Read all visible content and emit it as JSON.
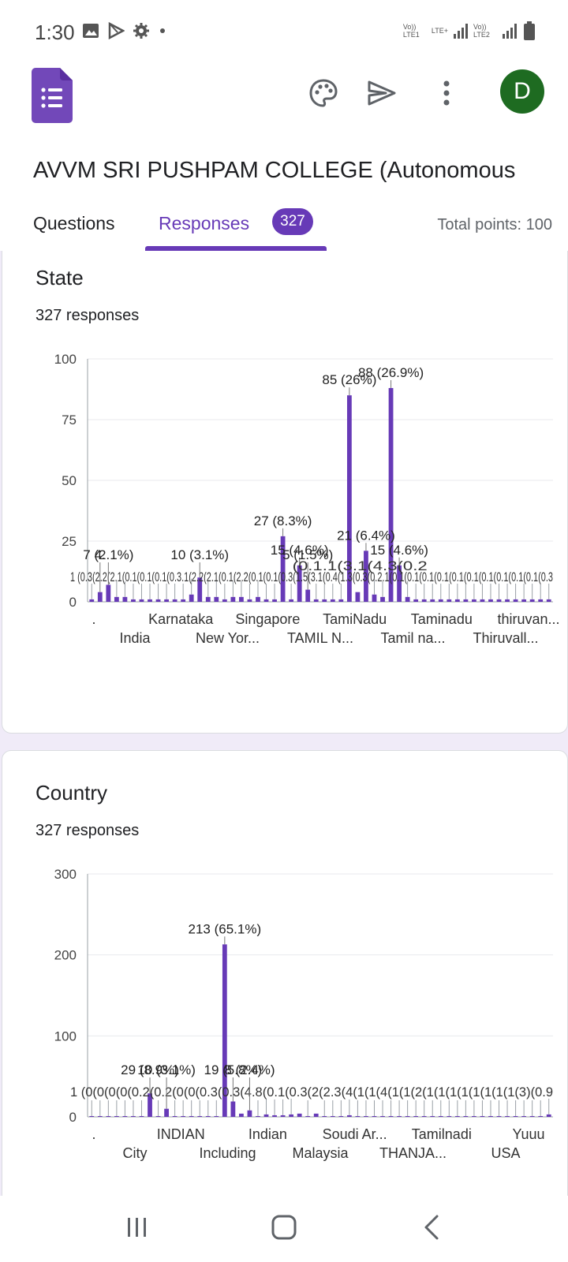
{
  "status_bar": {
    "time": "1:30",
    "left_icons": [
      "image-icon",
      "play-store-icon",
      "settings-icon",
      "dot-icon"
    ],
    "network_1": "Vo)) LTE1",
    "network_lte": "LTE+",
    "network_2": "Vo)) LTE2"
  },
  "app_bar": {
    "avatar_letter": "D",
    "icons": [
      "palette-icon",
      "send-icon",
      "more-vert-icon"
    ]
  },
  "form": {
    "title": "AVVM SRI PUSHPAM COLLEGE (Autonomous"
  },
  "tabs": {
    "questions_label": "Questions",
    "responses_label": "Responses",
    "responses_count": "327",
    "total_points": "Total points: 100"
  },
  "colors": {
    "accent": "#673ab7",
    "avatar": "#1e6b21",
    "background": "#f0ebf8"
  },
  "state_card": {
    "title": "State",
    "subtitle": "327 responses"
  },
  "country_card": {
    "title": "Country",
    "subtitle": "327 responses"
  },
  "chart_data": [
    {
      "type": "bar",
      "title": "State",
      "ylim": [
        0,
        100
      ],
      "yticks": [
        "0",
        "25",
        "50",
        "75",
        "100"
      ],
      "tick_labels_row1": [
        ".",
        "Karnataka",
        "Singapore",
        "TamiNadu",
        "Taminadu",
        "thiruvan..."
      ],
      "tick_labels_row2": [
        "India",
        "New Yor...",
        "TAMIL N...",
        "Tamil na...",
        "Thiruvall..."
      ],
      "values": [
        1,
        4,
        7,
        2,
        2,
        1,
        1,
        1,
        1,
        1,
        1,
        1,
        3,
        10,
        2,
        2,
        1,
        2,
        2,
        1,
        2,
        1,
        1,
        27,
        1,
        15,
        5,
        1,
        1,
        1,
        1,
        85,
        4,
        21,
        3,
        2,
        88,
        15,
        2,
        1,
        1,
        1,
        1,
        1,
        1,
        1,
        1,
        1,
        1,
        1,
        1,
        1,
        1,
        1,
        1,
        1
      ],
      "data_labels": [
        {
          "index": 1,
          "text": "4."
        },
        {
          "index": 2,
          "text": "7 (2.1%)"
        },
        {
          "index": 13,
          "text": "10 (3.1%)"
        },
        {
          "index": 23,
          "text": "27 (8.3%)"
        },
        {
          "index": 25,
          "text": "15 (4.6%)"
        },
        {
          "index": 26,
          "text": "5 (1.5%)"
        },
        {
          "index": 31,
          "text": "85 (26%)"
        },
        {
          "index": 33,
          "text": "21 (6.4%)"
        },
        {
          "index": 36,
          "text": "88 (26.9%)"
        },
        {
          "index": 37,
          "text": "15 (4.6%)"
        }
      ],
      "clutter_row": "1 (0.3(2.2(2.1(0.1(0.1(0.1(0.3.1(2.2(2.1(0.1(2.2(0.1(0.1(0.3(1.5(3.1(0.4(1.3(0.3(0.2.1(0.1(0.1(0.1(0.1(0.1(0.1(0.1(0.1(0.1(0.1(0.3",
      "clutter_row_secondary": "(0.1.1(3.1(4.3(0.2"
    },
    {
      "type": "bar",
      "title": "Country",
      "ylim": [
        0,
        300
      ],
      "yticks": [
        "0",
        "100",
        "200",
        "300"
      ],
      "tick_labels_row1": [
        ".",
        "INDIAN",
        "Indian",
        "Soudi Ar...",
        "Tamilnadi",
        "Yuuu"
      ],
      "tick_labels_row2": [
        "City",
        "Including",
        "Malaysia",
        "THANJA...",
        "USA"
      ],
      "values": [
        1,
        1,
        1,
        1,
        1,
        1,
        1,
        29,
        1,
        10,
        1,
        1,
        1,
        1,
        1,
        1,
        213,
        19,
        4,
        8,
        1,
        3,
        2,
        2,
        3,
        4,
        1,
        4,
        1,
        1,
        1,
        2,
        1,
        1,
        1,
        1,
        1,
        1,
        1,
        1,
        1,
        1,
        1,
        1,
        1,
        1,
        1,
        1,
        1,
        1,
        1,
        1,
        1,
        1,
        1,
        3
      ],
      "data_labels": [
        {
          "index": 7,
          "text": "29 (8.9%)"
        },
        {
          "index": 9,
          "text": "10 (3.1%)"
        },
        {
          "index": 16,
          "text": "213 (65.1%)"
        },
        {
          "index": 17,
          "text": "19 (5.8%)"
        },
        {
          "index": 19,
          "text": "8 (2.4%)"
        }
      ],
      "clutter_row": "1 (0(0(0(0(0.2(0.2(0(0(0.3(0.3(4.8(0.1(0.3(2(2.3(4(1(1(4(1(1(2(1(1(1(1(1(1(1(1(3)(0.9"
    }
  ]
}
